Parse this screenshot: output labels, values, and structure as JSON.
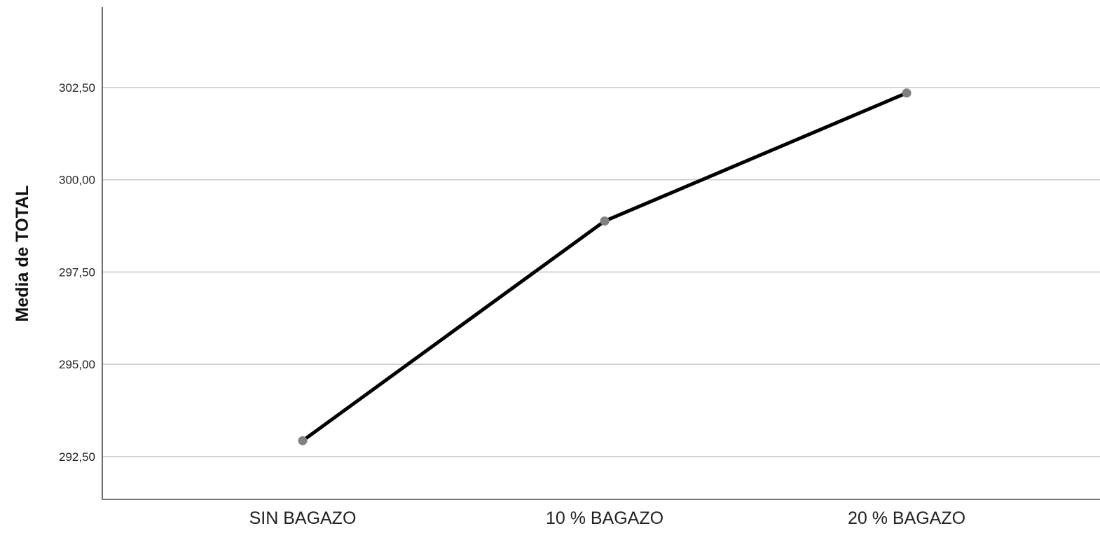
{
  "chart_data": {
    "type": "line",
    "title": "",
    "xlabel": "",
    "ylabel": "Media de TOTAL",
    "categories": [
      "SIN BAGAZO",
      "10 % BAGAZO",
      "20 % BAGAZO"
    ],
    "series": [
      {
        "values": [
          292.93,
          298.88,
          302.35
        ],
        "color": "#000000",
        "marker_color": "#808080"
      }
    ],
    "ylim": [
      291.34,
      304.68
    ],
    "yticks": [
      292.5,
      295.0,
      297.5,
      300.0,
      302.5
    ],
    "ytick_labels": [
      "292,50",
      "295,00",
      "297,50",
      "300,00",
      "302,50"
    ],
    "grid": true,
    "legend": "none"
  }
}
